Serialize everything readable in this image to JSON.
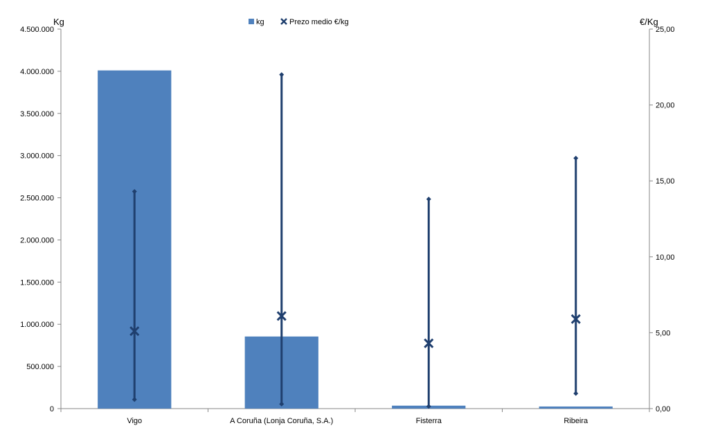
{
  "chart_data": {
    "type": "bar",
    "categories": [
      "Vigo",
      "A Coruña (Lonja Coruña, S.A.)",
      "Fisterra",
      "Ribeira"
    ],
    "ylabel": "Kg",
    "y2label": "€/Kg",
    "ylim": [
      0,
      4500000
    ],
    "y2lim": [
      0,
      25
    ],
    "yticks": [
      "0",
      "500.000",
      "1.000.000",
      "1.500.000",
      "2.000.000",
      "2.500.000",
      "3.000.000",
      "3.500.000",
      "4.000.000",
      "4.500.000"
    ],
    "y2ticks": [
      "0,00",
      "5,00",
      "10,00",
      "15,00",
      "20,00",
      "25,00"
    ],
    "legend_position": "top-center",
    "grid": false,
    "series": [
      {
        "name": "kg",
        "type": "bar",
        "axis": "left",
        "color": "#4F81BD",
        "values": [
          4010000,
          855000,
          35000,
          25000
        ]
      },
      {
        "name": "Prezo medio €/kg",
        "type": "marker",
        "axis": "right",
        "color": "#1F3F6E",
        "values": [
          5.1,
          6.1,
          4.3,
          5.9
        ],
        "range_min": [
          0.6,
          0.3,
          0.15,
          1.0
        ],
        "range_max": [
          14.3,
          22.0,
          13.8,
          16.5
        ]
      }
    ]
  }
}
